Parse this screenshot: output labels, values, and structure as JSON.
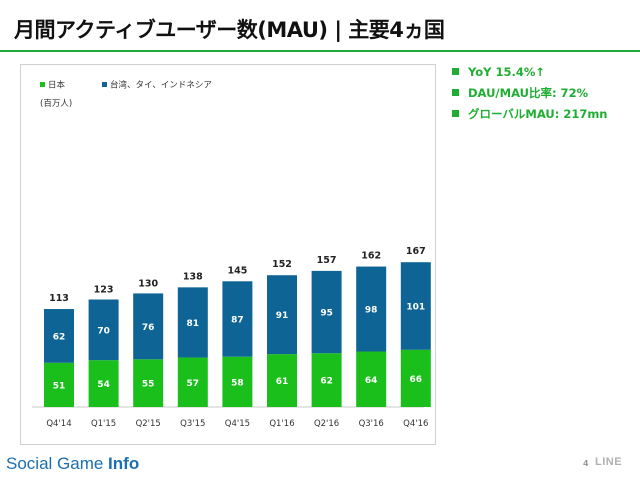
{
  "slide": {
    "title": "月間アクティブユーザー数(MAU) | 主要4ヵ国",
    "page_number": "4",
    "brand": "LINE"
  },
  "highlights": [
    "YoY 15.4%↑",
    "DAU/MAU比率: 72%",
    "グローバルMAU: 217mn"
  ],
  "watermark": {
    "part1": "Social Game ",
    "part2": "Info"
  },
  "colors": {
    "japan": "#1bbf1b",
    "others": "#0e6494",
    "accent_green": "#1fae33"
  },
  "chart_data": {
    "type": "bar",
    "stacked": true,
    "unit_label": "(百万人)",
    "categories": [
      "Q4'14",
      "Q1'15",
      "Q2'15",
      "Q3'15",
      "Q4'15",
      "Q1'16",
      "Q2'16",
      "Q3'16",
      "Q4'16"
    ],
    "series": [
      {
        "name": "日本",
        "values": [
          51,
          54,
          55,
          57,
          58,
          61,
          62,
          64,
          66
        ]
      },
      {
        "name": "台湾、タイ、インドネシア",
        "values": [
          62,
          70,
          76,
          81,
          87,
          91,
          95,
          98,
          101
        ]
      }
    ],
    "totals": [
      113,
      123,
      130,
      138,
      145,
      152,
      157,
      162,
      167
    ],
    "legend_position": "top-left",
    "ylim": [
      0,
      180
    ],
    "grid": false
  }
}
